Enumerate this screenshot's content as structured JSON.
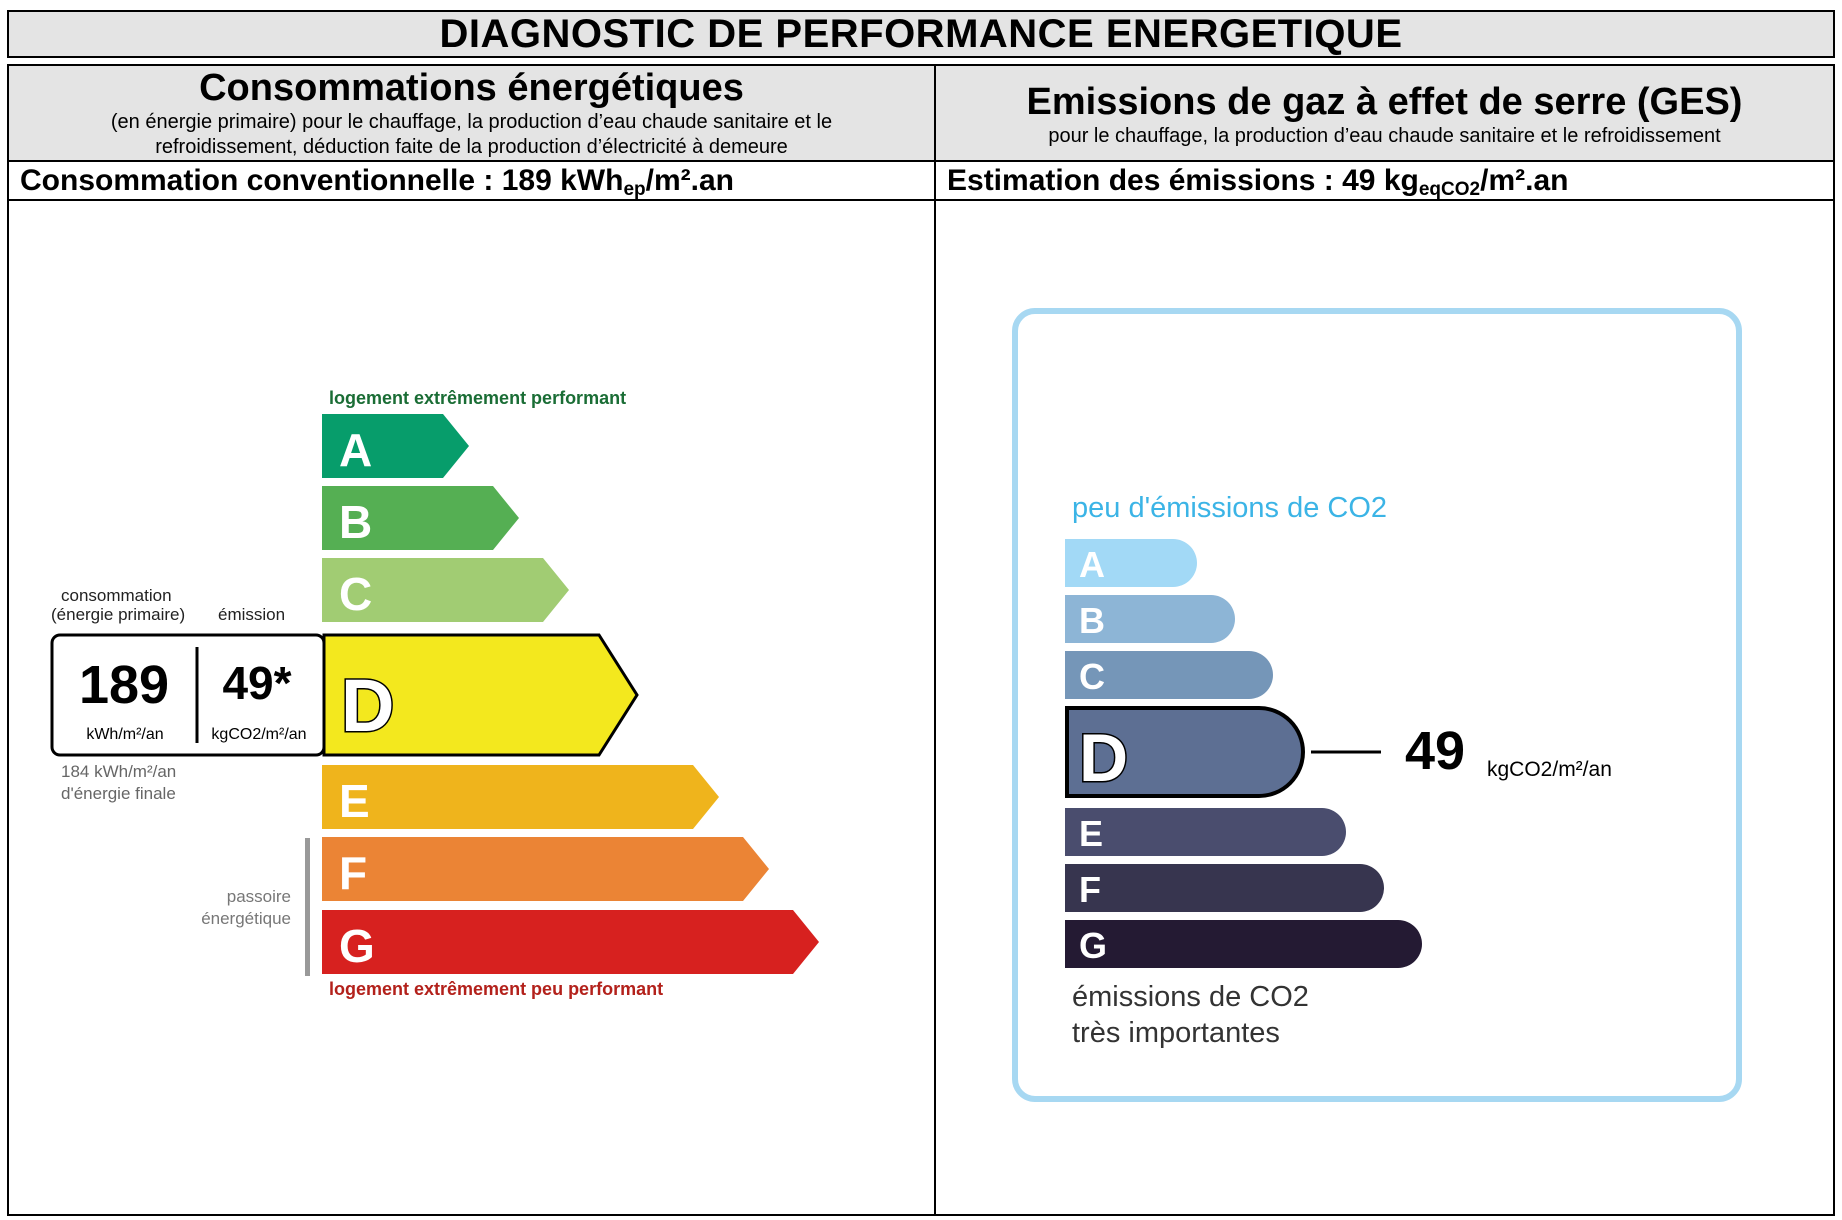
{
  "page_title": "DIAGNOSTIC DE PERFORMANCE ENERGETIQUE",
  "energy": {
    "title": "Consommations énergétiques",
    "subtitle_line1": "(en énergie primaire) pour le chauffage, la production d’eau chaude sanitaire et le",
    "subtitle_line2": "refroidissement, déduction faite de la production d’électricité à demeure",
    "summary_prefix": "Consommation conventionnelle : ",
    "summary_value": "189",
    "summary_unit_main": " kWh",
    "summary_unit_sub": "ep",
    "summary_unit_tail": "/m².an",
    "label_top": "logement extrêmement performant",
    "label_bottom": "logement extrêmement peu performant",
    "box_header_consumption_line1": "consommation",
    "box_header_consumption_line2": "(énergie primaire)",
    "box_header_emission": "émission",
    "consumption_value": "189",
    "consumption_unit": "kWh/m²/an",
    "emission_value": "49*",
    "emission_unit": "kgCO2/m²/an",
    "final_energy_line1": "184 kWh/m²/an",
    "final_energy_line2": "d'énergie finale",
    "passoire_line1": "passoire",
    "passoire_line2": "énergétique",
    "current_class": "D",
    "classes": [
      {
        "letter": "A",
        "color": "#079d6b"
      },
      {
        "letter": "B",
        "color": "#55af53"
      },
      {
        "letter": "C",
        "color": "#a1cc73"
      },
      {
        "letter": "D",
        "color": "#f3e81e"
      },
      {
        "letter": "E",
        "color": "#efb41c"
      },
      {
        "letter": "F",
        "color": "#eb8435"
      },
      {
        "letter": "G",
        "color": "#d7211f"
      }
    ]
  },
  "ges": {
    "title": "Emissions de gaz à effet de serre (GES)",
    "subtitle": "pour le chauffage, la production d’eau chaude sanitaire et le refroidissement",
    "summary_prefix": "Estimation des émissions : ",
    "summary_value": "49",
    "summary_unit_main": " kg",
    "summary_unit_sub": "eqCO2",
    "summary_unit_tail": "/m².an",
    "label_top": "peu d'émissions de CO2",
    "label_bottom_line1": "émissions de CO2",
    "label_bottom_line2": "très importantes",
    "value": "49",
    "unit": "kgCO2/m²/an",
    "current_class": "D",
    "frame_color": "#a7d8f2",
    "classes": [
      {
        "letter": "A",
        "color": "#a2d9f6"
      },
      {
        "letter": "B",
        "color": "#8db5d6"
      },
      {
        "letter": "C",
        "color": "#7596b8"
      },
      {
        "letter": "D",
        "color": "#5d6f93"
      },
      {
        "letter": "E",
        "color": "#4a4d6e"
      },
      {
        "letter": "F",
        "color": "#37354f"
      },
      {
        "letter": "G",
        "color": "#241a33"
      }
    ]
  }
}
